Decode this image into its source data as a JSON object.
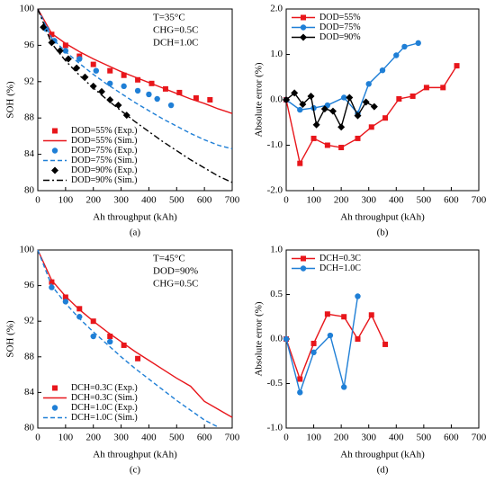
{
  "chart_data": [
    {
      "type": "line",
      "caption": "(a)",
      "xlabel": "Ah throughput (kAh)",
      "ylabel": "SOH (%)",
      "annotations": [
        "T=35°C",
        "CHG=0.5C",
        "DCH=1.0C"
      ],
      "xlim": [
        0,
        700
      ],
      "xticks": [
        0,
        100,
        200,
        300,
        400,
        500,
        600,
        700
      ],
      "ylim": [
        80,
        100
      ],
      "yticks": [
        80,
        84,
        88,
        92,
        96,
        100
      ],
      "legend": "lower left",
      "series": [
        {
          "name": "DOD=55% (Exp.)",
          "color": "#e8161b",
          "marker": "square",
          "line": "none",
          "x": [
            50,
            100,
            150,
            200,
            260,
            310,
            360,
            410,
            460,
            510,
            570,
            620
          ],
          "values": [
            97.2,
            96.0,
            94.8,
            93.9,
            93.2,
            92.7,
            92.2,
            91.8,
            91.2,
            90.8,
            90.2,
            90.0
          ]
        },
        {
          "name": "DOD=55% (Sim.)",
          "color": "#e8161b",
          "marker": "none",
          "line": "solid",
          "x": [
            0,
            50,
            100,
            150,
            200,
            250,
            300,
            350,
            400,
            450,
            500,
            550,
            600,
            650,
            700
          ],
          "values": [
            100,
            97.3,
            96.2,
            95.3,
            94.5,
            93.8,
            93.1,
            92.5,
            91.9,
            91.3,
            90.7,
            90.1,
            89.6,
            89.0,
            88.5
          ]
        },
        {
          "name": "DOD=75% (Exp.)",
          "color": "#1f7fd6",
          "marker": "circle",
          "line": "none",
          "x": [
            30,
            60,
            100,
            150,
            210,
            260,
            310,
            360,
            400,
            430,
            480
          ],
          "values": [
            97.8,
            96.5,
            95.4,
            94.5,
            93.2,
            91.8,
            91.5,
            91.0,
            90.6,
            90.1,
            89.4
          ]
        },
        {
          "name": "DOD=75% (Sim.)",
          "color": "#1f7fd6",
          "marker": "none",
          "line": "dashed",
          "x": [
            0,
            50,
            100,
            150,
            200,
            250,
            300,
            350,
            400,
            450,
            500,
            550,
            600,
            650,
            700
          ],
          "values": [
            100,
            96.8,
            95.3,
            94.0,
            92.8,
            91.7,
            90.7,
            89.7,
            88.8,
            87.9,
            87.1,
            86.3,
            85.6,
            85.0,
            84.6
          ]
        },
        {
          "name": "DOD=90% (Exp.)",
          "color": "#000000",
          "marker": "diamond",
          "line": "none",
          "x": [
            20,
            50,
            80,
            110,
            140,
            170,
            200,
            230,
            260,
            290,
            320
          ],
          "values": [
            98.0,
            96.3,
            95.4,
            94.5,
            93.5,
            92.5,
            91.5,
            90.9,
            90.0,
            89.4,
            88.3
          ]
        },
        {
          "name": "DOD=90% (Sim.)",
          "color": "#000000",
          "marker": "none",
          "line": "dashdot",
          "x": [
            0,
            50,
            100,
            150,
            200,
            250,
            300,
            350,
            400,
            450,
            500,
            550,
            600,
            650,
            700
          ],
          "values": [
            100,
            96.2,
            94.3,
            92.7,
            91.3,
            90.0,
            88.8,
            87.6,
            86.5,
            85.4,
            84.4,
            83.4,
            82.5,
            81.6,
            80.9
          ]
        }
      ]
    },
    {
      "type": "line",
      "caption": "(b)",
      "xlabel": "Ah throughput (kAh)",
      "ylabel": "Absolute error (%)",
      "xlim": [
        0,
        700
      ],
      "xticks": [
        0,
        100,
        200,
        300,
        400,
        500,
        600,
        700
      ],
      "ylim": [
        -2,
        2
      ],
      "yticks": [
        {
          "value": -2,
          "label": "-2.0"
        },
        {
          "value": -1,
          "label": "-1.0"
        },
        {
          "value": 0,
          "label": "0.0"
        },
        {
          "value": 1,
          "label": "1.0"
        },
        {
          "value": 2,
          "label": "2.0"
        }
      ],
      "legend": "upper left",
      "series": [
        {
          "name": "DOD=55%",
          "color": "#e8161b",
          "marker": "square",
          "line": "solid",
          "x": [
            0,
            50,
            100,
            150,
            200,
            260,
            310,
            360,
            410,
            460,
            510,
            570,
            620
          ],
          "values": [
            0,
            -1.4,
            -0.85,
            -1.0,
            -1.05,
            -0.85,
            -0.6,
            -0.4,
            0.02,
            0.08,
            0.27,
            0.27,
            0.75
          ]
        },
        {
          "name": "DOD=75%",
          "color": "#1f7fd6",
          "marker": "circle",
          "line": "solid",
          "x": [
            0,
            50,
            100,
            150,
            210,
            260,
            300,
            350,
            400,
            430,
            480
          ],
          "values": [
            0,
            -0.22,
            -0.18,
            -0.12,
            0.05,
            -0.3,
            0.35,
            0.65,
            0.98,
            1.17,
            1.25
          ]
        },
        {
          "name": "DOD=90%",
          "color": "#000000",
          "marker": "diamond",
          "line": "solid",
          "x": [
            0,
            30,
            60,
            90,
            110,
            140,
            170,
            200,
            230,
            260,
            290,
            320
          ],
          "values": [
            0,
            0.15,
            -0.1,
            0.08,
            -0.55,
            -0.2,
            -0.25,
            -0.6,
            0.05,
            -0.35,
            -0.05,
            -0.15
          ]
        }
      ]
    },
    {
      "type": "line",
      "caption": "(c)",
      "xlabel": "Ah throughput (kAh)",
      "ylabel": "SOH (%)",
      "annotations": [
        "T=45°C",
        "DOD=90%",
        "CHG=0.5C"
      ],
      "xlim": [
        0,
        700
      ],
      "xticks": [
        0,
        100,
        200,
        300,
        400,
        500,
        600,
        700
      ],
      "ylim": [
        80,
        100
      ],
      "yticks": [
        80,
        84,
        88,
        92,
        96,
        100
      ],
      "legend": "lower left",
      "series": [
        {
          "name": "DCH=0.3C (Exp.)",
          "color": "#e8161b",
          "marker": "square",
          "line": "none",
          "x": [
            50,
            100,
            150,
            200,
            260,
            310,
            360
          ],
          "values": [
            96.4,
            94.7,
            93.4,
            92.0,
            90.3,
            89.3,
            87.8
          ]
        },
        {
          "name": "DCH=0.3C (Sim.)",
          "color": "#e8161b",
          "marker": "none",
          "line": "solid",
          "x": [
            0,
            50,
            100,
            150,
            200,
            250,
            300,
            350,
            400,
            450,
            500,
            550,
            600,
            650,
            700
          ],
          "values": [
            100,
            96.6,
            94.8,
            93.3,
            92.0,
            90.8,
            89.7,
            88.6,
            87.6,
            86.6,
            85.6,
            84.7,
            83.0,
            82.1,
            81.2
          ]
        },
        {
          "name": "DCH=1.0C (Exp.)",
          "color": "#1f7fd6",
          "marker": "circle",
          "line": "none",
          "x": [
            50,
            100,
            150,
            200,
            260
          ],
          "values": [
            95.8,
            94.2,
            92.5,
            90.3,
            89.7
          ]
        },
        {
          "name": "DCH=1.0C (Sim.)",
          "color": "#1f7fd6",
          "marker": "none",
          "line": "dashed",
          "x": [
            0,
            50,
            100,
            150,
            200,
            250,
            300,
            350,
            400,
            450,
            500,
            550,
            600,
            650
          ],
          "values": [
            100,
            96.0,
            94.0,
            92.3,
            90.8,
            89.4,
            88.0,
            86.7,
            85.5,
            84.3,
            83.1,
            82.0,
            80.9,
            80.1
          ]
        }
      ]
    },
    {
      "type": "line",
      "caption": "(d)",
      "xlabel": "Ah throughput (kAh)",
      "ylabel": "Absolute error (%)",
      "xlim": [
        0,
        700
      ],
      "xticks": [
        0,
        100,
        200,
        300,
        400,
        500,
        600,
        700
      ],
      "ylim": [
        -1,
        1
      ],
      "yticks": [
        {
          "value": -1,
          "label": "-1.0"
        },
        {
          "value": -0.5,
          "label": "-0.5"
        },
        {
          "value": 0,
          "label": "0.0"
        },
        {
          "value": 0.5,
          "label": "0.5"
        },
        {
          "value": 1,
          "label": "1.0"
        }
      ],
      "legend": "upper left",
      "series": [
        {
          "name": "DCH=0.3C",
          "color": "#e8161b",
          "marker": "square",
          "line": "solid",
          "x": [
            0,
            50,
            100,
            150,
            210,
            260,
            310,
            360
          ],
          "values": [
            0,
            -0.45,
            -0.05,
            0.28,
            0.25,
            0,
            0.27,
            -0.06
          ]
        },
        {
          "name": "DCH=1.0C",
          "color": "#1f7fd6",
          "marker": "circle",
          "line": "solid",
          "x": [
            0,
            50,
            100,
            160,
            210,
            260
          ],
          "values": [
            0,
            -0.6,
            -0.15,
            0.04,
            -0.54,
            0.48
          ]
        }
      ]
    }
  ]
}
